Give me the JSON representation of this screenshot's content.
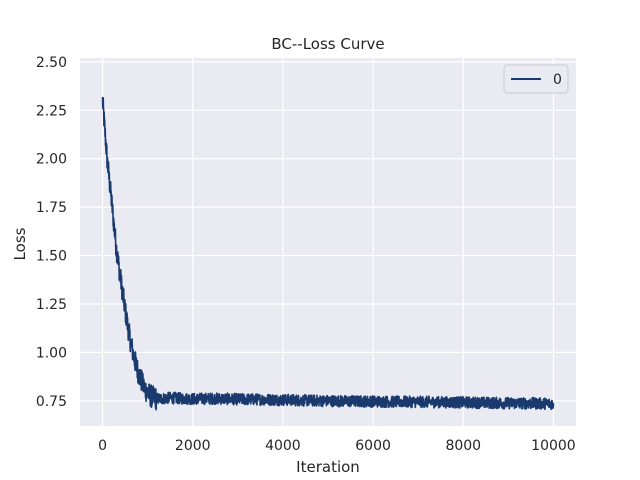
{
  "chart_data": {
    "type": "line",
    "title": "BC--Loss Curve",
    "xlabel": "Iteration",
    "ylabel": "Loss",
    "xlim": [
      -500,
      10500
    ],
    "ylim": [
      0.62,
      2.52
    ],
    "xticks": [
      0,
      2000,
      4000,
      6000,
      8000,
      10000
    ],
    "xtick_labels": [
      "0",
      "2000",
      "4000",
      "6000",
      "8000",
      "10000"
    ],
    "yticks": [
      0.75,
      1.0,
      1.25,
      1.5,
      1.75,
      2.0,
      2.25,
      2.5
    ],
    "ytick_labels": [
      "0.75",
      "1.00",
      "1.25",
      "1.50",
      "1.75",
      "2.00",
      "2.25",
      "2.50"
    ],
    "grid": true,
    "legend_position": "upper right",
    "series": [
      {
        "name": "0",
        "color": "#1a3a6e",
        "x": [
          0,
          100,
          200,
          300,
          400,
          500,
          600,
          700,
          800,
          900,
          1000,
          1100,
          1200,
          1500,
          2000,
          2500,
          3000,
          3500,
          4000,
          4500,
          5000,
          5500,
          6000,
          6500,
          7000,
          7500,
          8000,
          8500,
          9000,
          9500,
          10000
        ],
        "y": [
          2.3,
          2.0,
          1.78,
          1.55,
          1.38,
          1.22,
          1.08,
          0.97,
          0.89,
          0.83,
          0.79,
          0.77,
          0.76,
          0.765,
          0.76,
          0.762,
          0.758,
          0.757,
          0.755,
          0.752,
          0.75,
          0.748,
          0.747,
          0.745,
          0.745,
          0.743,
          0.742,
          0.74,
          0.738,
          0.737,
          0.735
        ]
      }
    ]
  }
}
